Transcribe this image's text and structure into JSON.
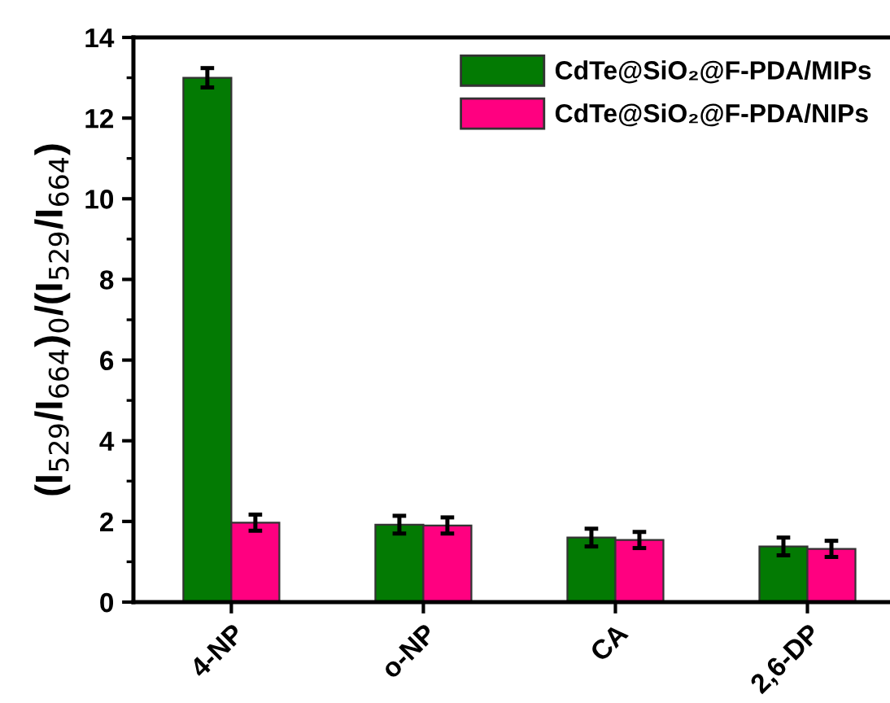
{
  "chart_data": {
    "type": "bar",
    "ylabel": "(I$_{529}$/I$_{664}$)$_{0}$/(I$_{529}$/I$_{664}$)",
    "categories": [
      "4-NP",
      "o-NP",
      "CA",
      "2,6-DP"
    ],
    "series": [
      {
        "name": "CdTe@SiO₂@F-PDA/MIPs",
        "color": "#037a03",
        "values": [
          13.0,
          1.92,
          1.6,
          1.38
        ],
        "errors": [
          0.24,
          0.22,
          0.22,
          0.22
        ]
      },
      {
        "name": "CdTe@SiO₂@F-PDA/NIPs",
        "color": "#ff0080",
        "values": [
          1.97,
          1.9,
          1.54,
          1.32
        ],
        "errors": [
          0.2,
          0.2,
          0.2,
          0.2
        ]
      }
    ],
    "ylim": [
      0,
      14
    ],
    "yticks": [
      0,
      2,
      4,
      6,
      8,
      10,
      12,
      14
    ],
    "legend": "top right",
    "grid": false
  }
}
